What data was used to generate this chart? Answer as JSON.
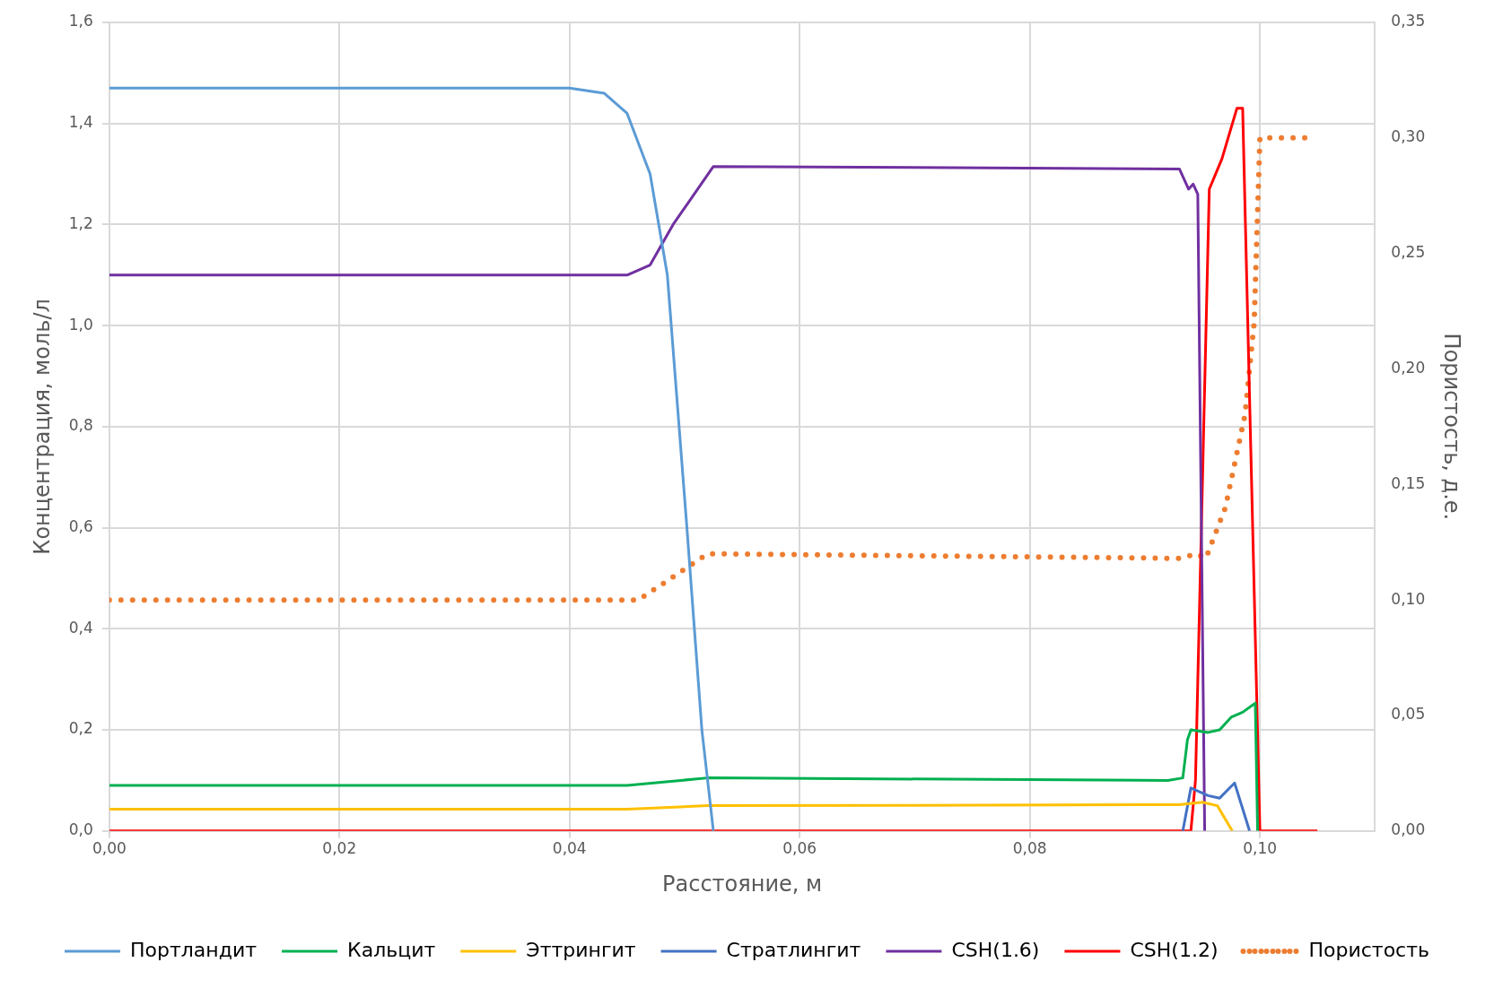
{
  "chart_data": {
    "type": "line",
    "xlabel": "Расстояние, м",
    "ylabel": "Концентрация, моль/л",
    "y2label": "Пористость, д.е.",
    "xlim": [
      0,
      0.11
    ],
    "xticks": [
      {
        "value": 0,
        "label": "0,00"
      },
      {
        "value": 0.02,
        "label": "0,02"
      },
      {
        "value": 0.04,
        "label": "0,04"
      },
      {
        "value": 0.06,
        "label": "0,06"
      },
      {
        "value": 0.08,
        "label": "0,08"
      },
      {
        "value": 0.1,
        "label": "0,10"
      }
    ],
    "ylim": [
      0,
      1.6
    ],
    "yticks": [
      {
        "value": 0,
        "label": "0,0"
      },
      {
        "value": 0.2,
        "label": "0,2"
      },
      {
        "value": 0.4,
        "label": "0,4"
      },
      {
        "value": 0.6,
        "label": "0,6"
      },
      {
        "value": 0.8,
        "label": "0,8"
      },
      {
        "value": 1,
        "label": "1,0"
      },
      {
        "value": 1.2,
        "label": "1,2"
      },
      {
        "value": 1.4,
        "label": "1,4"
      },
      {
        "value": 1.6,
        "label": "1,6"
      }
    ],
    "y2lim": [
      0,
      0.35
    ],
    "y2ticks": [
      {
        "value": 0,
        "label": "0,00"
      },
      {
        "value": 0.05,
        "label": "0,05"
      },
      {
        "value": 0.1,
        "label": "0,10"
      },
      {
        "value": 0.15,
        "label": "0,15"
      },
      {
        "value": 0.2,
        "label": "0,20"
      },
      {
        "value": 0.25,
        "label": "0,25"
      },
      {
        "value": 0.3,
        "label": "0,30"
      },
      {
        "value": 0.35,
        "label": "0,35"
      }
    ],
    "grid": true,
    "legend": "bottom",
    "marker": "none",
    "series": [
      {
        "name": "Портландит",
        "color": "#5b9bd5",
        "x": [
          0,
          0.04,
          0.043,
          0.045,
          0.047,
          0.0485,
          0.0502,
          0.0515,
          0.0525
        ],
        "values": [
          1.47,
          1.47,
          1.46,
          1.42,
          1.3,
          1.1,
          0.6,
          0.2,
          0
        ]
      },
      {
        "name": "Кальцит",
        "color": "#00b050",
        "x": [
          0,
          0.045,
          0.052,
          0.092,
          0.0933,
          0.0937,
          0.094,
          0.0955,
          0.0965,
          0.0975,
          0.0985,
          0.0996,
          0.0998
        ],
        "values": [
          0.09,
          0.09,
          0.105,
          0.1,
          0.105,
          0.18,
          0.2,
          0.195,
          0.2,
          0.225,
          0.235,
          0.253,
          0
        ]
      },
      {
        "name": "Эттрингит",
        "color": "#ffc000",
        "x": [
          0,
          0.045,
          0.052,
          0.093,
          0.095,
          0.0963,
          0.0976
        ],
        "values": [
          0.043,
          0.043,
          0.05,
          0.052,
          0.057,
          0.05,
          0
        ]
      },
      {
        "name": "Стратлингит",
        "color": "#4472c4",
        "x": [
          0.0933,
          0.094,
          0.0955,
          0.0965,
          0.0978,
          0.0991
        ],
        "values": [
          0,
          0.085,
          0.07,
          0.065,
          0.095,
          0
        ]
      },
      {
        "name": "CSH(1.6)",
        "color": "#7030a0",
        "x": [
          0,
          0.045,
          0.047,
          0.049,
          0.0525,
          0.093,
          0.0938,
          0.0942,
          0.0946,
          0.0952
        ],
        "values": [
          1.1,
          1.1,
          1.12,
          1.2,
          1.315,
          1.31,
          1.27,
          1.28,
          1.26,
          0
        ]
      },
      {
        "name": "CSH(1.2)",
        "color": "#ff0000",
        "x": [
          0,
          0.094,
          0.0944,
          0.0956,
          0.0967,
          0.098,
          0.0985,
          0.1,
          0.105
        ],
        "values": [
          0,
          0,
          0.1,
          1.27,
          1.33,
          1.43,
          1.43,
          0,
          0
        ]
      },
      {
        "name": "Пористость",
        "color": "#ed7d31",
        "axis": "y2",
        "line_style": "dotted",
        "x": [
          0,
          0.046,
          0.052,
          0.093,
          0.0945,
          0.0953,
          0.097,
          0.0987,
          0.0995,
          0.1,
          0.1039
        ],
        "values": [
          0.1,
          0.1,
          0.12,
          0.118,
          0.12,
          0.118,
          0.14,
          0.18,
          0.22,
          0.3,
          0.3
        ]
      }
    ]
  }
}
